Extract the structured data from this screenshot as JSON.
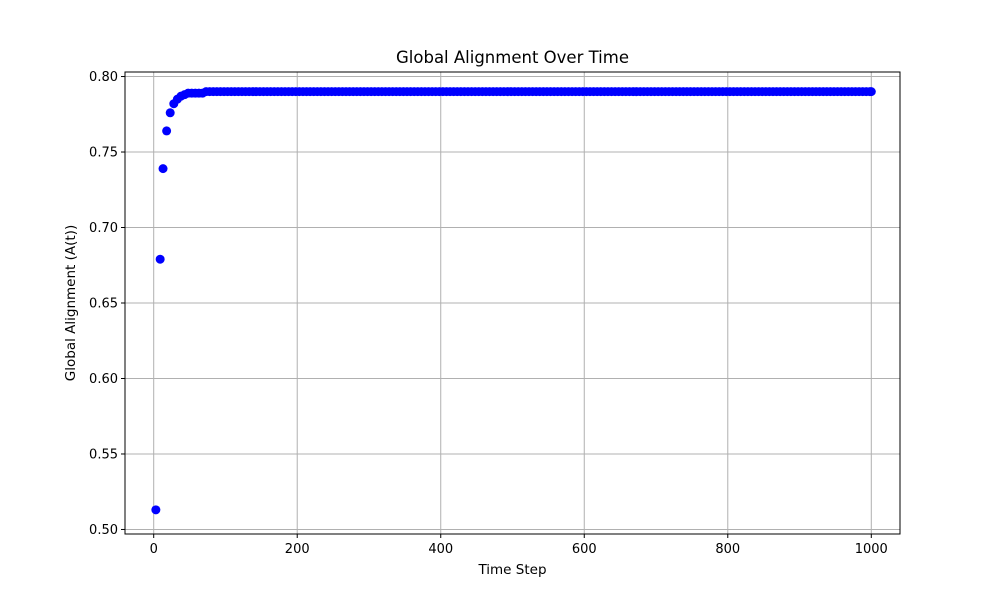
{
  "chart_data": {
    "type": "scatter",
    "title": "Global Alignment Over Time",
    "xlabel": "Time Step",
    "ylabel": "Global Alignment (A(t))",
    "xlim": [
      -40,
      1040
    ],
    "ylim": [
      0.497,
      0.803
    ],
    "xticks": [
      0,
      200,
      400,
      600,
      800,
      1000
    ],
    "xtick_labels": [
      "0",
      "200",
      "400",
      "600",
      "800",
      "1000"
    ],
    "yticks": [
      0.5,
      0.55,
      0.6,
      0.65,
      0.7,
      0.75,
      0.8
    ],
    "ytick_labels": [
      "0.50",
      "0.55",
      "0.60",
      "0.65",
      "0.70",
      "0.75",
      "0.80"
    ],
    "grid": true,
    "marker_color": "#0000ff",
    "series": [
      {
        "x": [
          3,
          9,
          13,
          18,
          23,
          28,
          33,
          38,
          43,
          48,
          53,
          58,
          63,
          68,
          73,
          78,
          83,
          88,
          93,
          98,
          103,
          108,
          113,
          118,
          123,
          128,
          133,
          138,
          143,
          148,
          153,
          158,
          163,
          168,
          173,
          178,
          183,
          188,
          193,
          198,
          203,
          208,
          213,
          218,
          223,
          228,
          233,
          238,
          243,
          248,
          253,
          258,
          263,
          268,
          273,
          278,
          283,
          288,
          293,
          298,
          303,
          308,
          313,
          318,
          323,
          328,
          333,
          338,
          343,
          348,
          353,
          358,
          363,
          368,
          373,
          378,
          383,
          388,
          393,
          398,
          403,
          408,
          413,
          418,
          423,
          428,
          433,
          438,
          443,
          448,
          453,
          458,
          463,
          468,
          473,
          478,
          483,
          488,
          493,
          498,
          503,
          508,
          513,
          518,
          523,
          528,
          533,
          538,
          543,
          548,
          553,
          558,
          563,
          568,
          573,
          578,
          583,
          588,
          593,
          598,
          603,
          608,
          613,
          618,
          623,
          628,
          633,
          638,
          643,
          648,
          653,
          658,
          663,
          668,
          673,
          678,
          683,
          688,
          693,
          698,
          703,
          708,
          713,
          718,
          723,
          728,
          733,
          738,
          743,
          748,
          753,
          758,
          763,
          768,
          773,
          778,
          783,
          788,
          793,
          798,
          803,
          808,
          813,
          818,
          823,
          828,
          833,
          838,
          843,
          848,
          853,
          858,
          863,
          868,
          873,
          878,
          883,
          888,
          893,
          898,
          903,
          908,
          913,
          918,
          923,
          928,
          933,
          938,
          943,
          948,
          953,
          958,
          963,
          968,
          973,
          978,
          983,
          988,
          993,
          998,
          1000
        ],
        "y": [
          0.513,
          0.679,
          0.739,
          0.764,
          0.776,
          0.782,
          0.785,
          0.787,
          0.788,
          0.789,
          0.789,
          0.789,
          0.789,
          0.789,
          0.79,
          0.79,
          0.79,
          0.79,
          0.79,
          0.79,
          0.79,
          0.79,
          0.79,
          0.79,
          0.79,
          0.79,
          0.79,
          0.79,
          0.79,
          0.79,
          0.79,
          0.79,
          0.79,
          0.79,
          0.79,
          0.79,
          0.79,
          0.79,
          0.79,
          0.79,
          0.79,
          0.79,
          0.79,
          0.79,
          0.79,
          0.79,
          0.79,
          0.79,
          0.79,
          0.79,
          0.79,
          0.79,
          0.79,
          0.79,
          0.79,
          0.79,
          0.79,
          0.79,
          0.79,
          0.79,
          0.79,
          0.79,
          0.79,
          0.79,
          0.79,
          0.79,
          0.79,
          0.79,
          0.79,
          0.79,
          0.79,
          0.79,
          0.79,
          0.79,
          0.79,
          0.79,
          0.79,
          0.79,
          0.79,
          0.79,
          0.79,
          0.79,
          0.79,
          0.79,
          0.79,
          0.79,
          0.79,
          0.79,
          0.79,
          0.79,
          0.79,
          0.79,
          0.79,
          0.79,
          0.79,
          0.79,
          0.79,
          0.79,
          0.79,
          0.79,
          0.79,
          0.79,
          0.79,
          0.79,
          0.79,
          0.79,
          0.79,
          0.79,
          0.79,
          0.79,
          0.79,
          0.79,
          0.79,
          0.79,
          0.79,
          0.79,
          0.79,
          0.79,
          0.79,
          0.79,
          0.79,
          0.79,
          0.79,
          0.79,
          0.79,
          0.79,
          0.79,
          0.79,
          0.79,
          0.79,
          0.79,
          0.79,
          0.79,
          0.79,
          0.79,
          0.79,
          0.79,
          0.79,
          0.79,
          0.79,
          0.79,
          0.79,
          0.79,
          0.79,
          0.79,
          0.79,
          0.79,
          0.79,
          0.79,
          0.79,
          0.79,
          0.79,
          0.79,
          0.79,
          0.79,
          0.79,
          0.79,
          0.79,
          0.79,
          0.79,
          0.79,
          0.79,
          0.79,
          0.79,
          0.79,
          0.79,
          0.79,
          0.79,
          0.79,
          0.79,
          0.79,
          0.79,
          0.79,
          0.79,
          0.79,
          0.79,
          0.79,
          0.79,
          0.79,
          0.79,
          0.79,
          0.79,
          0.79,
          0.79,
          0.79,
          0.79,
          0.79,
          0.79,
          0.79,
          0.79,
          0.79,
          0.79,
          0.79,
          0.79,
          0.79,
          0.79,
          0.79,
          0.79,
          0.79,
          0.79,
          0.79
        ]
      }
    ]
  }
}
